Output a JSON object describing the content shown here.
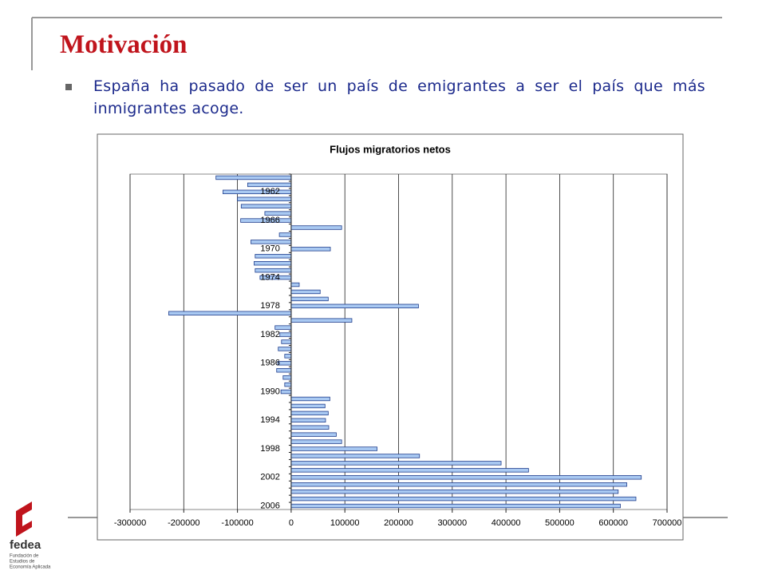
{
  "slide": {
    "title": "Motivación",
    "bullet": "España ha pasado de ser un país de emigrantes a ser el país que más inmigrantes acoge.",
    "logo": {
      "name": "fedea",
      "caption": [
        "Fundación de",
        "Estudios de",
        "Economía Aplicada"
      ]
    }
  },
  "chart_data": {
    "type": "hbar",
    "title": "Flujos migratorios netos",
    "categories": [
      null,
      null,
      "1962",
      null,
      null,
      null,
      "1966",
      null,
      null,
      null,
      "1970",
      null,
      null,
      null,
      "1974",
      null,
      null,
      null,
      "1978",
      null,
      null,
      null,
      "1982",
      null,
      null,
      null,
      "1986",
      null,
      null,
      null,
      "1990",
      null,
      null,
      null,
      "1994",
      null,
      null,
      null,
      "1998",
      null,
      null,
      null,
      "2002",
      null,
      null,
      null,
      "2006"
    ],
    "values": [
      -140000,
      -81000,
      -127000,
      -100000,
      -93000,
      -49000,
      -94000,
      94000,
      -22000,
      -75000,
      73000,
      -67000,
      -69000,
      -67000,
      -58000,
      15000,
      54000,
      69000,
      237000,
      -228000,
      113000,
      -30000,
      -21000,
      -18000,
      -24000,
      -12000,
      -25000,
      -27000,
      -15000,
      -12000,
      -19000,
      72000,
      63000,
      69000,
      64000,
      70000,
      84000,
      94000,
      160000,
      239000,
      391000,
      442000,
      652000,
      625000,
      609000,
      642000,
      613000
    ],
    "color": "#a9c9f2",
    "edge_color": "#1f3d8c",
    "xlim": [
      -300000,
      700000
    ],
    "xticks": [
      -300000,
      -200000,
      -100000,
      0,
      100000,
      200000,
      300000,
      400000,
      500000,
      600000,
      700000
    ],
    "grid": true
  }
}
